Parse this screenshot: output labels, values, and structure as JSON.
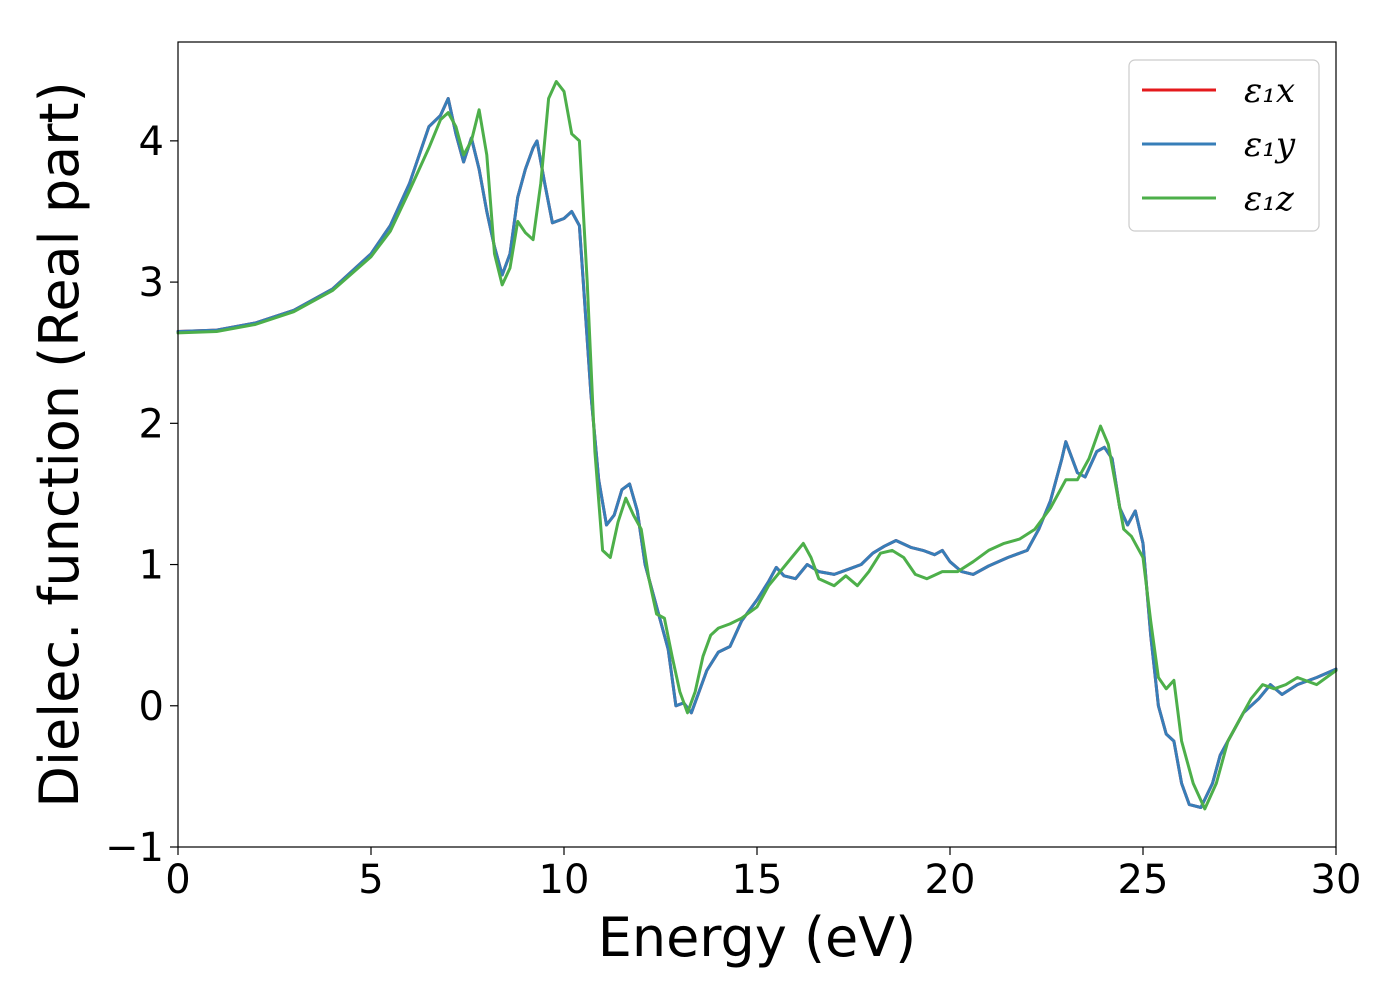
{
  "chart_data": {
    "type": "line",
    "xlabel": "Energy (eV)",
    "ylabel": "Dielec. function (Real part)",
    "xlim": [
      0,
      30
    ],
    "ylim": [
      -1,
      4.7
    ],
    "xticks": [
      0,
      5,
      10,
      15,
      20,
      25,
      30
    ],
    "xtick_labels": [
      "0",
      "5",
      "10",
      "15",
      "20",
      "25",
      "30"
    ],
    "yticks": [
      -1,
      0,
      1,
      2,
      3,
      4
    ],
    "ytick_labels": [
      "−1",
      "0",
      "1",
      "2",
      "3",
      "4"
    ],
    "grid": false,
    "legend_position": "top-right",
    "series": [
      {
        "name": "ε₁x",
        "color": "#e41a1c",
        "points": [
          [
            0,
            2.65
          ],
          [
            1,
            2.66
          ],
          [
            2,
            2.71
          ],
          [
            3,
            2.8
          ],
          [
            4,
            2.95
          ],
          [
            5,
            3.2
          ],
          [
            5.5,
            3.4
          ],
          [
            6,
            3.7
          ],
          [
            6.5,
            4.1
          ],
          [
            6.8,
            4.18
          ],
          [
            7.0,
            4.3
          ],
          [
            7.2,
            4.05
          ],
          [
            7.4,
            3.85
          ],
          [
            7.6,
            4.02
          ],
          [
            7.8,
            3.8
          ],
          [
            8.0,
            3.5
          ],
          [
            8.2,
            3.25
          ],
          [
            8.4,
            3.05
          ],
          [
            8.6,
            3.2
          ],
          [
            8.8,
            3.6
          ],
          [
            9.0,
            3.8
          ],
          [
            9.2,
            3.95
          ],
          [
            9.3,
            4.0
          ],
          [
            9.5,
            3.7
          ],
          [
            9.7,
            3.42
          ],
          [
            10.0,
            3.45
          ],
          [
            10.2,
            3.5
          ],
          [
            10.4,
            3.4
          ],
          [
            10.5,
            3.0
          ],
          [
            10.7,
            2.2
          ],
          [
            10.9,
            1.6
          ],
          [
            11.1,
            1.28
          ],
          [
            11.3,
            1.35
          ],
          [
            11.5,
            1.53
          ],
          [
            11.7,
            1.57
          ],
          [
            11.9,
            1.38
          ],
          [
            12.1,
            1.0
          ],
          [
            12.3,
            0.8
          ],
          [
            12.5,
            0.6
          ],
          [
            12.7,
            0.4
          ],
          [
            12.9,
            0.0
          ],
          [
            13.1,
            0.02
          ],
          [
            13.3,
            -0.05
          ],
          [
            13.5,
            0.1
          ],
          [
            13.7,
            0.25
          ],
          [
            14.0,
            0.38
          ],
          [
            14.3,
            0.42
          ],
          [
            14.6,
            0.6
          ],
          [
            15.0,
            0.75
          ],
          [
            15.3,
            0.88
          ],
          [
            15.5,
            0.98
          ],
          [
            15.7,
            0.92
          ],
          [
            16.0,
            0.9
          ],
          [
            16.3,
            1.0
          ],
          [
            16.6,
            0.95
          ],
          [
            17.0,
            0.93
          ],
          [
            17.4,
            0.97
          ],
          [
            17.7,
            1.0
          ],
          [
            18.0,
            1.08
          ],
          [
            18.3,
            1.13
          ],
          [
            18.6,
            1.17
          ],
          [
            19.0,
            1.12
          ],
          [
            19.3,
            1.1
          ],
          [
            19.6,
            1.07
          ],
          [
            19.8,
            1.1
          ],
          [
            20.0,
            1.02
          ],
          [
            20.3,
            0.95
          ],
          [
            20.6,
            0.93
          ],
          [
            21.0,
            0.99
          ],
          [
            21.5,
            1.05
          ],
          [
            22.0,
            1.1
          ],
          [
            22.3,
            1.25
          ],
          [
            22.6,
            1.45
          ],
          [
            22.9,
            1.75
          ],
          [
            23.0,
            1.87
          ],
          [
            23.3,
            1.65
          ],
          [
            23.5,
            1.62
          ],
          [
            23.8,
            1.8
          ],
          [
            24.0,
            1.83
          ],
          [
            24.2,
            1.75
          ],
          [
            24.4,
            1.4
          ],
          [
            24.6,
            1.28
          ],
          [
            24.8,
            1.38
          ],
          [
            25.0,
            1.15
          ],
          [
            25.2,
            0.5
          ],
          [
            25.4,
            0.0
          ],
          [
            25.6,
            -0.2
          ],
          [
            25.8,
            -0.25
          ],
          [
            26.0,
            -0.55
          ],
          [
            26.2,
            -0.7
          ],
          [
            26.5,
            -0.72
          ],
          [
            26.8,
            -0.55
          ],
          [
            27.0,
            -0.35
          ],
          [
            27.3,
            -0.2
          ],
          [
            27.6,
            -0.05
          ],
          [
            28.0,
            0.05
          ],
          [
            28.3,
            0.15
          ],
          [
            28.6,
            0.08
          ],
          [
            29.0,
            0.15
          ],
          [
            29.5,
            0.2
          ],
          [
            30.0,
            0.26
          ]
        ]
      },
      {
        "name": "ε₁y",
        "color": "#377eb8",
        "points": [
          [
            0,
            2.65
          ],
          [
            1,
            2.66
          ],
          [
            2,
            2.71
          ],
          [
            3,
            2.8
          ],
          [
            4,
            2.95
          ],
          [
            5,
            3.2
          ],
          [
            5.5,
            3.4
          ],
          [
            6,
            3.7
          ],
          [
            6.5,
            4.1
          ],
          [
            6.8,
            4.18
          ],
          [
            7.0,
            4.3
          ],
          [
            7.2,
            4.05
          ],
          [
            7.4,
            3.85
          ],
          [
            7.6,
            4.02
          ],
          [
            7.8,
            3.8
          ],
          [
            8.0,
            3.5
          ],
          [
            8.2,
            3.25
          ],
          [
            8.4,
            3.05
          ],
          [
            8.6,
            3.2
          ],
          [
            8.8,
            3.6
          ],
          [
            9.0,
            3.8
          ],
          [
            9.2,
            3.95
          ],
          [
            9.3,
            4.0
          ],
          [
            9.5,
            3.7
          ],
          [
            9.7,
            3.42
          ],
          [
            10.0,
            3.45
          ],
          [
            10.2,
            3.5
          ],
          [
            10.4,
            3.4
          ],
          [
            10.5,
            3.0
          ],
          [
            10.7,
            2.2
          ],
          [
            10.9,
            1.6
          ],
          [
            11.1,
            1.28
          ],
          [
            11.3,
            1.35
          ],
          [
            11.5,
            1.53
          ],
          [
            11.7,
            1.57
          ],
          [
            11.9,
            1.38
          ],
          [
            12.1,
            1.0
          ],
          [
            12.3,
            0.8
          ],
          [
            12.5,
            0.6
          ],
          [
            12.7,
            0.4
          ],
          [
            12.9,
            0.0
          ],
          [
            13.1,
            0.02
          ],
          [
            13.3,
            -0.05
          ],
          [
            13.5,
            0.1
          ],
          [
            13.7,
            0.25
          ],
          [
            14.0,
            0.38
          ],
          [
            14.3,
            0.42
          ],
          [
            14.6,
            0.6
          ],
          [
            15.0,
            0.75
          ],
          [
            15.3,
            0.88
          ],
          [
            15.5,
            0.98
          ],
          [
            15.7,
            0.92
          ],
          [
            16.0,
            0.9
          ],
          [
            16.3,
            1.0
          ],
          [
            16.6,
            0.95
          ],
          [
            17.0,
            0.93
          ],
          [
            17.4,
            0.97
          ],
          [
            17.7,
            1.0
          ],
          [
            18.0,
            1.08
          ],
          [
            18.3,
            1.13
          ],
          [
            18.6,
            1.17
          ],
          [
            19.0,
            1.12
          ],
          [
            19.3,
            1.1
          ],
          [
            19.6,
            1.07
          ],
          [
            19.8,
            1.1
          ],
          [
            20.0,
            1.02
          ],
          [
            20.3,
            0.95
          ],
          [
            20.6,
            0.93
          ],
          [
            21.0,
            0.99
          ],
          [
            21.5,
            1.05
          ],
          [
            22.0,
            1.1
          ],
          [
            22.3,
            1.25
          ],
          [
            22.6,
            1.45
          ],
          [
            22.9,
            1.75
          ],
          [
            23.0,
            1.87
          ],
          [
            23.3,
            1.65
          ],
          [
            23.5,
            1.62
          ],
          [
            23.8,
            1.8
          ],
          [
            24.0,
            1.83
          ],
          [
            24.2,
            1.75
          ],
          [
            24.4,
            1.4
          ],
          [
            24.6,
            1.28
          ],
          [
            24.8,
            1.38
          ],
          [
            25.0,
            1.15
          ],
          [
            25.2,
            0.5
          ],
          [
            25.4,
            0.0
          ],
          [
            25.6,
            -0.2
          ],
          [
            25.8,
            -0.25
          ],
          [
            26.0,
            -0.55
          ],
          [
            26.2,
            -0.7
          ],
          [
            26.5,
            -0.72
          ],
          [
            26.8,
            -0.55
          ],
          [
            27.0,
            -0.35
          ],
          [
            27.3,
            -0.2
          ],
          [
            27.6,
            -0.05
          ],
          [
            28.0,
            0.05
          ],
          [
            28.3,
            0.15
          ],
          [
            28.6,
            0.08
          ],
          [
            29.0,
            0.15
          ],
          [
            29.5,
            0.2
          ],
          [
            30.0,
            0.26
          ]
        ]
      },
      {
        "name": "ε₁z",
        "color": "#4daf4a",
        "points": [
          [
            0,
            2.64
          ],
          [
            1,
            2.65
          ],
          [
            2,
            2.7
          ],
          [
            3,
            2.79
          ],
          [
            4,
            2.94
          ],
          [
            5,
            3.18
          ],
          [
            5.5,
            3.36
          ],
          [
            6,
            3.65
          ],
          [
            6.5,
            3.95
          ],
          [
            6.8,
            4.15
          ],
          [
            7.0,
            4.2
          ],
          [
            7.2,
            4.1
          ],
          [
            7.4,
            3.9
          ],
          [
            7.6,
            4.0
          ],
          [
            7.8,
            4.22
          ],
          [
            8.0,
            3.9
          ],
          [
            8.2,
            3.2
          ],
          [
            8.4,
            2.98
          ],
          [
            8.6,
            3.1
          ],
          [
            8.8,
            3.43
          ],
          [
            9.0,
            3.35
          ],
          [
            9.2,
            3.3
          ],
          [
            9.4,
            3.7
          ],
          [
            9.6,
            4.3
          ],
          [
            9.8,
            4.42
          ],
          [
            10.0,
            4.35
          ],
          [
            10.2,
            4.05
          ],
          [
            10.4,
            4.0
          ],
          [
            10.6,
            3.0
          ],
          [
            10.8,
            1.8
          ],
          [
            11.0,
            1.1
          ],
          [
            11.2,
            1.05
          ],
          [
            11.4,
            1.3
          ],
          [
            11.6,
            1.47
          ],
          [
            11.8,
            1.35
          ],
          [
            12.0,
            1.25
          ],
          [
            12.2,
            0.9
          ],
          [
            12.4,
            0.65
          ],
          [
            12.6,
            0.62
          ],
          [
            12.8,
            0.35
          ],
          [
            13.0,
            0.1
          ],
          [
            13.2,
            -0.05
          ],
          [
            13.4,
            0.1
          ],
          [
            13.6,
            0.35
          ],
          [
            13.8,
            0.5
          ],
          [
            14.0,
            0.55
          ],
          [
            14.3,
            0.58
          ],
          [
            14.6,
            0.62
          ],
          [
            15.0,
            0.7
          ],
          [
            15.3,
            0.85
          ],
          [
            15.6,
            0.95
          ],
          [
            15.9,
            1.05
          ],
          [
            16.2,
            1.15
          ],
          [
            16.4,
            1.05
          ],
          [
            16.6,
            0.9
          ],
          [
            17.0,
            0.85
          ],
          [
            17.3,
            0.92
          ],
          [
            17.6,
            0.85
          ],
          [
            17.9,
            0.95
          ],
          [
            18.2,
            1.08
          ],
          [
            18.5,
            1.1
          ],
          [
            18.8,
            1.05
          ],
          [
            19.1,
            0.93
          ],
          [
            19.4,
            0.9
          ],
          [
            19.8,
            0.95
          ],
          [
            20.2,
            0.95
          ],
          [
            20.6,
            1.02
          ],
          [
            21.0,
            1.1
          ],
          [
            21.4,
            1.15
          ],
          [
            21.8,
            1.18
          ],
          [
            22.2,
            1.25
          ],
          [
            22.6,
            1.4
          ],
          [
            23.0,
            1.6
          ],
          [
            23.3,
            1.6
          ],
          [
            23.6,
            1.75
          ],
          [
            23.9,
            1.98
          ],
          [
            24.1,
            1.85
          ],
          [
            24.3,
            1.55
          ],
          [
            24.5,
            1.25
          ],
          [
            24.7,
            1.2
          ],
          [
            25.0,
            1.05
          ],
          [
            25.2,
            0.6
          ],
          [
            25.4,
            0.2
          ],
          [
            25.6,
            0.12
          ],
          [
            25.8,
            0.18
          ],
          [
            26.0,
            -0.25
          ],
          [
            26.3,
            -0.55
          ],
          [
            26.6,
            -0.73
          ],
          [
            26.9,
            -0.55
          ],
          [
            27.2,
            -0.25
          ],
          [
            27.5,
            -0.1
          ],
          [
            27.8,
            0.05
          ],
          [
            28.1,
            0.15
          ],
          [
            28.4,
            0.12
          ],
          [
            28.7,
            0.15
          ],
          [
            29.0,
            0.2
          ],
          [
            29.5,
            0.15
          ],
          [
            30.0,
            0.25
          ]
        ]
      }
    ]
  }
}
